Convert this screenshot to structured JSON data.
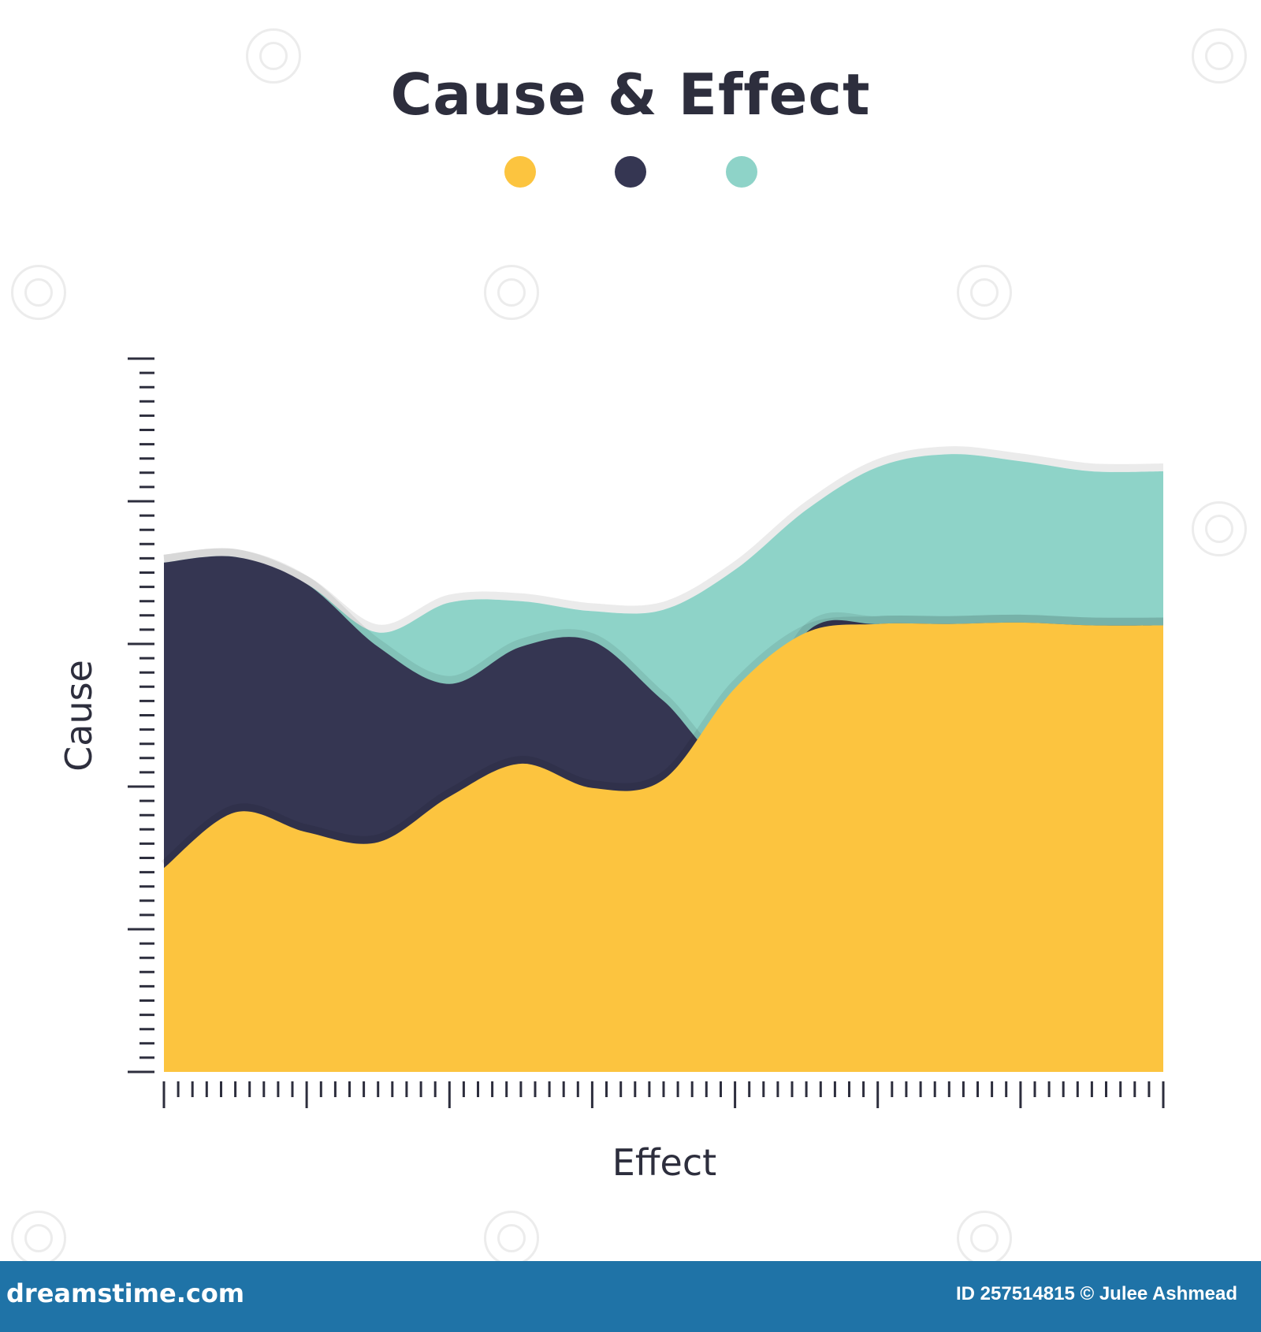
{
  "chart_data": {
    "type": "area",
    "title": "Cause & Effect",
    "xlabel": "Effect",
    "ylabel": "Cause",
    "xlim": [
      0,
      70
    ],
    "ylim": [
      0,
      50
    ],
    "x_ticks": 71,
    "y_ticks": 51,
    "grid": false,
    "legend_position": "top-center",
    "series": [
      {
        "color": "#fcc43f",
        "points": [
          [
            0,
            14.3
          ],
          [
            5,
            18.2
          ],
          [
            10,
            16.8
          ],
          [
            15,
            16.1
          ],
          [
            20,
            19.3
          ],
          [
            25,
            21.6
          ],
          [
            30,
            19.9
          ],
          [
            35,
            20.5
          ],
          [
            40,
            26.9
          ],
          [
            45,
            30.8
          ],
          [
            50,
            31.4
          ],
          [
            55,
            31.4
          ],
          [
            60,
            31.5
          ],
          [
            65,
            31.3
          ],
          [
            70,
            31.3
          ]
        ]
      },
      {
        "color": "#353652",
        "points": [
          [
            0,
            35.7
          ],
          [
            5,
            36.1
          ],
          [
            10,
            34.2
          ],
          [
            15,
            29.8
          ],
          [
            20,
            27.2
          ],
          [
            25,
            29.8
          ],
          [
            30,
            30.2
          ],
          [
            35,
            26.0
          ],
          [
            40,
            21.9
          ],
          [
            45,
            30.8
          ],
          [
            50,
            31.4
          ],
          [
            55,
            31.4
          ],
          [
            60,
            31.5
          ],
          [
            65,
            31.3
          ],
          [
            70,
            31.3
          ]
        ]
      },
      {
        "color": "#8ed3c8",
        "points": [
          [
            0,
            35.7
          ],
          [
            5,
            36.1
          ],
          [
            10,
            34.2
          ],
          [
            15,
            30.8
          ],
          [
            20,
            32.9
          ],
          [
            25,
            33.0
          ],
          [
            30,
            32.3
          ],
          [
            35,
            32.4
          ],
          [
            40,
            35.2
          ],
          [
            45,
            39.4
          ],
          [
            50,
            42.4
          ],
          [
            55,
            43.3
          ],
          [
            60,
            42.8
          ],
          [
            65,
            42.1
          ],
          [
            70,
            42.1
          ]
        ]
      }
    ]
  },
  "colors": {
    "yellow": "#fcc43f",
    "navy": "#353652",
    "teal": "#8ed3c8",
    "text": "#2d2e3d",
    "footer": "#1f73a7"
  },
  "footer": {
    "brand": "dreamstime.com",
    "credit": "ID 257514815 © Julee Ashmead"
  }
}
